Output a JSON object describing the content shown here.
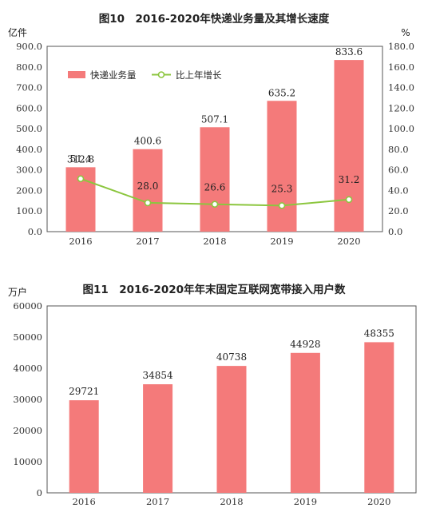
{
  "colors": {
    "bar": "#f47a7a",
    "line": "#8cc63f",
    "axis": "#555555",
    "marker_fill": "#ffffff"
  },
  "chart_data": [
    {
      "type": "bar",
      "title": "图10　2016-2020年快递业务量及其增长速度",
      "left_unit": "亿件",
      "right_unit": "%",
      "categories": [
        "2016",
        "2017",
        "2018",
        "2019",
        "2020"
      ],
      "series": [
        {
          "name": "快递业务量",
          "type": "bar",
          "axis": "left",
          "values": [
            312.8,
            400.6,
            507.1,
            635.2,
            833.6
          ],
          "labels": [
            "312.8",
            "400.6",
            "507.1",
            "635.2",
            "833.6"
          ]
        },
        {
          "name": "比上年增长",
          "type": "line",
          "axis": "right",
          "values": [
            51.4,
            28.0,
            26.6,
            25.3,
            31.2
          ],
          "labels": [
            "51.4",
            "28.0",
            "26.6",
            "25.3",
            "31.2"
          ]
        }
      ],
      "ylim_left": [
        0,
        900
      ],
      "yticks_left": [
        "0.0",
        "100.0",
        "200.0",
        "300.0",
        "400.0",
        "500.0",
        "600.0",
        "700.0",
        "800.0",
        "900.0"
      ],
      "ylim_right": [
        0,
        180
      ],
      "yticks_right": [
        "0.0",
        "20.0",
        "40.0",
        "60.0",
        "80.0",
        "100.0",
        "120.0",
        "140.0",
        "160.0",
        "180.0"
      ],
      "legend": "top-left",
      "grid": false
    },
    {
      "type": "bar",
      "title": "图11　2016-2020年年末固定互联网宽带接入用户数",
      "left_unit": "万户",
      "categories": [
        "2016",
        "2017",
        "2018",
        "2019",
        "2020"
      ],
      "series": [
        {
          "values": [
            29721,
            34854,
            40738,
            44928,
            48355
          ],
          "labels": [
            "29721",
            "34854",
            "40738",
            "44928",
            "48355"
          ]
        }
      ],
      "ylim_left": [
        0,
        60000
      ],
      "yticks_left": [
        "0",
        "10000",
        "20000",
        "30000",
        "40000",
        "50000",
        "60000"
      ],
      "grid": false
    }
  ]
}
